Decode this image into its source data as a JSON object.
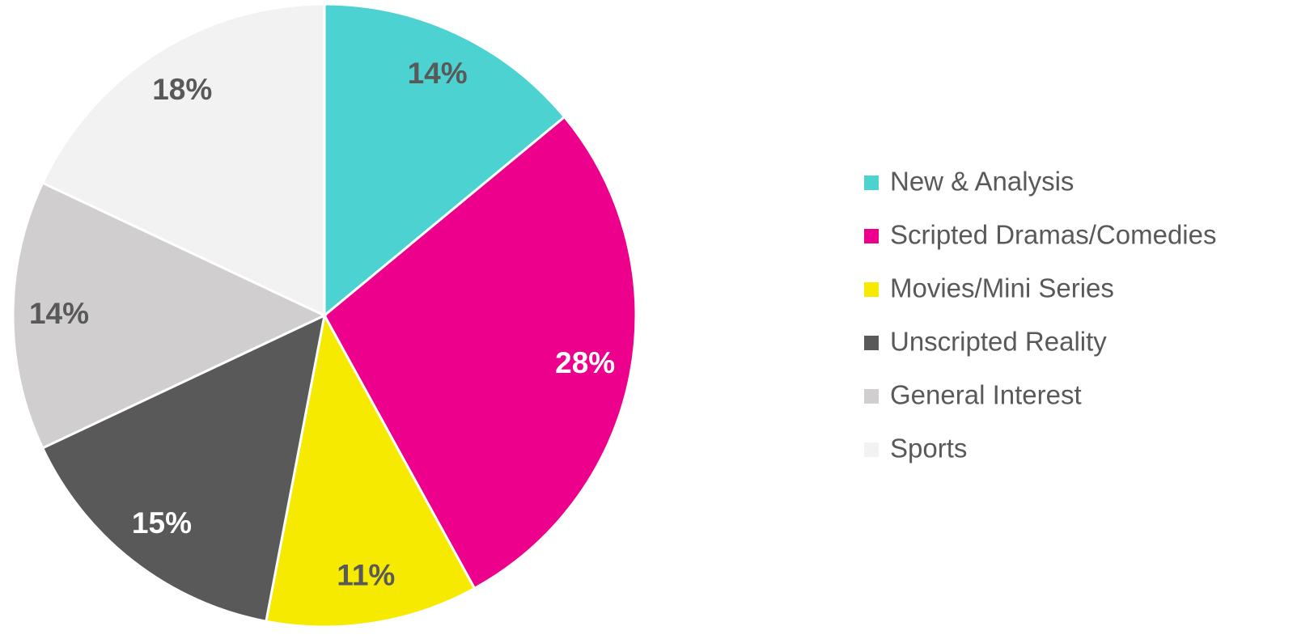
{
  "chart_data": {
    "type": "pie",
    "categories": [
      "New & Analysis",
      "Scripted Dramas/Comedies",
      "Movies/Mini Series",
      "Unscripted Reality",
      "General Interest",
      "Sports"
    ],
    "values": [
      14,
      28,
      11,
      15,
      14,
      18
    ],
    "value_labels": [
      "14%",
      "28%",
      "11%",
      "15%",
      "14%",
      "18%"
    ],
    "colors": [
      "#4dd2d2",
      "#ec008c",
      "#f5ea00",
      "#595959",
      "#d0cece",
      "#f2f2f2"
    ],
    "legend": "right"
  }
}
